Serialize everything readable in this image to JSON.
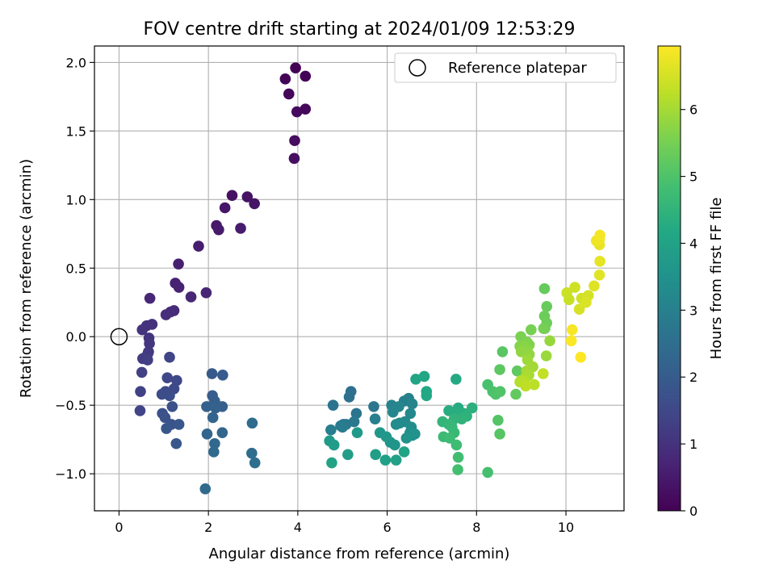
{
  "chart_data": {
    "type": "scatter",
    "title": "FOV centre drift starting at 2024/01/09 12:53:29",
    "xlabel": "Angular distance from reference (arcmin)",
    "ylabel": "Rotation from reference (arcmin)",
    "xlim": [
      -0.55,
      11.3
    ],
    "ylim": [
      -1.27,
      2.12
    ],
    "x_ticks": [
      0,
      2,
      4,
      6,
      8,
      10
    ],
    "y_ticks": [
      -1.0,
      -0.5,
      0.0,
      0.5,
      1.0,
      1.5,
      2.0
    ],
    "x_tick_labels": [
      "0",
      "2",
      "4",
      "6",
      "8",
      "10"
    ],
    "y_tick_labels": [
      "−1.0",
      "−0.5",
      "0.0",
      "0.5",
      "1.0",
      "1.5",
      "2.0"
    ],
    "grid": true,
    "legend": {
      "placement": "top-right",
      "entries": [
        {
          "label": "Reference platepar",
          "marker": "open-circle",
          "color": "#000000"
        }
      ]
    },
    "reference_point": {
      "x": 0.0,
      "y": 0.0
    },
    "colorbar": {
      "label": "Hours from first FF file",
      "range": [
        0,
        6.95
      ],
      "ticks": [
        0,
        1,
        2,
        3,
        4,
        5,
        6
      ],
      "tick_labels": [
        "0",
        "1",
        "2",
        "3",
        "4",
        "5",
        "6"
      ],
      "colormap": "viridis"
    },
    "series": [
      {
        "points": [
          [
            3.95,
            1.96
          ],
          [
            4.17,
            1.9
          ],
          [
            3.72,
            1.88
          ],
          [
            3.8,
            1.77
          ],
          [
            4.17,
            1.66
          ],
          [
            3.98,
            1.64
          ],
          [
            3.93,
            1.43
          ],
          [
            3.92,
            1.3
          ],
          [
            2.53,
            1.03
          ],
          [
            2.87,
            1.02
          ],
          [
            3.03,
            0.97
          ],
          [
            2.37,
            0.94
          ],
          [
            2.18,
            0.81
          ],
          [
            2.23,
            0.78
          ],
          [
            2.72,
            0.79
          ],
          [
            1.78,
            0.66
          ],
          [
            1.33,
            0.53
          ],
          [
            1.26,
            0.39
          ],
          [
            1.34,
            0.36
          ],
          [
            1.95,
            0.32
          ],
          [
            1.61,
            0.29
          ],
          [
            0.69,
            0.28
          ],
          [
            1.23,
            0.19
          ],
          [
            1.15,
            0.18
          ],
          [
            1.05,
            0.16
          ],
          [
            0.74,
            0.09
          ],
          [
            0.62,
            0.08
          ],
          [
            0.52,
            0.05
          ],
          [
            0.67,
            -0.01
          ],
          [
            0.68,
            -0.05
          ],
          [
            0.66,
            -0.11
          ],
          [
            0.65,
            -0.12
          ],
          [
            0.59,
            -0.15
          ],
          [
            0.53,
            -0.16
          ],
          [
            0.64,
            -0.17
          ],
          [
            0.51,
            -0.26
          ],
          [
            0.48,
            -0.4
          ],
          [
            0.47,
            -0.54
          ],
          [
            1.13,
            -0.15
          ],
          [
            1.08,
            -0.3
          ],
          [
            1.29,
            -0.32
          ],
          [
            1.23,
            -0.38
          ],
          [
            1.04,
            -0.4
          ],
          [
            0.96,
            -0.42
          ],
          [
            1.13,
            -0.43
          ],
          [
            0.97,
            -0.56
          ],
          [
            1.19,
            -0.51
          ],
          [
            1.03,
            -0.59
          ],
          [
            1.17,
            -0.64
          ],
          [
            1.06,
            -0.67
          ],
          [
            1.34,
            -0.64
          ],
          [
            1.28,
            -0.78
          ],
          [
            2.08,
            -0.27
          ],
          [
            2.32,
            -0.28
          ],
          [
            2.09,
            -0.43
          ],
          [
            2.14,
            -0.47
          ],
          [
            2.31,
            -0.51
          ],
          [
            1.96,
            -0.51
          ],
          [
            2.16,
            -0.52
          ],
          [
            2.1,
            -0.59
          ],
          [
            1.97,
            -0.71
          ],
          [
            2.31,
            -0.7
          ],
          [
            2.14,
            -0.78
          ],
          [
            2.12,
            -0.84
          ],
          [
            1.93,
            -1.11
          ],
          [
            2.98,
            -0.63
          ],
          [
            2.97,
            -0.85
          ],
          [
            3.04,
            -0.92
          ],
          [
            5.19,
            -0.4
          ],
          [
            5.15,
            -0.44
          ],
          [
            4.79,
            -0.5
          ],
          [
            5.31,
            -0.56
          ],
          [
            5.7,
            -0.51
          ],
          [
            5.26,
            -0.62
          ],
          [
            5.08,
            -0.64
          ],
          [
            5.02,
            -0.64
          ],
          [
            4.96,
            -0.65
          ],
          [
            5.0,
            -0.66
          ],
          [
            4.74,
            -0.68
          ],
          [
            5.73,
            -0.6
          ],
          [
            6.38,
            -0.47
          ],
          [
            6.48,
            -0.45
          ],
          [
            6.1,
            -0.5
          ],
          [
            6.56,
            -0.49
          ],
          [
            6.26,
            -0.51
          ],
          [
            6.13,
            -0.55
          ],
          [
            6.52,
            -0.56
          ],
          [
            6.4,
            -0.62
          ],
          [
            6.28,
            -0.63
          ],
          [
            6.2,
            -0.64
          ],
          [
            6.54,
            -0.66
          ],
          [
            6.51,
            -0.7
          ],
          [
            6.56,
            -0.72
          ],
          [
            6.62,
            -0.71
          ],
          [
            6.43,
            -0.74
          ],
          [
            6.07,
            -0.77
          ],
          [
            6.17,
            -0.79
          ],
          [
            5.84,
            -0.7
          ],
          [
            5.98,
            -0.73
          ],
          [
            5.33,
            -0.7
          ],
          [
            4.71,
            -0.76
          ],
          [
            4.81,
            -0.79
          ],
          [
            5.12,
            -0.86
          ],
          [
            5.74,
            -0.86
          ],
          [
            5.96,
            -0.9
          ],
          [
            6.2,
            -0.9
          ],
          [
            6.38,
            -0.84
          ],
          [
            4.76,
            -0.92
          ],
          [
            6.64,
            -0.31
          ],
          [
            6.83,
            -0.29
          ],
          [
            6.88,
            -0.4
          ],
          [
            6.88,
            -0.43
          ],
          [
            7.54,
            -0.31
          ],
          [
            7.59,
            -0.52
          ],
          [
            7.38,
            -0.54
          ],
          [
            7.56,
            -0.55
          ],
          [
            7.72,
            -0.56
          ],
          [
            7.9,
            -0.52
          ],
          [
            7.78,
            -0.58
          ],
          [
            7.67,
            -0.6
          ],
          [
            7.5,
            -0.6
          ],
          [
            7.24,
            -0.62
          ],
          [
            7.38,
            -0.64
          ],
          [
            7.45,
            -0.66
          ],
          [
            7.5,
            -0.7
          ],
          [
            7.26,
            -0.73
          ],
          [
            7.4,
            -0.74
          ],
          [
            7.55,
            -0.79
          ],
          [
            7.59,
            -0.88
          ],
          [
            7.58,
            -0.97
          ],
          [
            8.25,
            -0.99
          ],
          [
            8.25,
            -0.35
          ],
          [
            8.36,
            -0.4
          ],
          [
            8.43,
            -0.42
          ],
          [
            8.53,
            -0.4
          ],
          [
            8.48,
            -0.61
          ],
          [
            8.52,
            -0.71
          ],
          [
            8.58,
            -0.11
          ],
          [
            8.52,
            -0.24
          ],
          [
            8.91,
            -0.25
          ],
          [
            8.88,
            -0.42
          ],
          [
            9.52,
            0.35
          ],
          [
            9.57,
            0.22
          ],
          [
            9.52,
            0.15
          ],
          [
            9.57,
            0.1
          ],
          [
            9.53,
            0.06
          ],
          [
            9.5,
            0.06
          ],
          [
            9.22,
            0.05
          ],
          [
            8.99,
            0.0
          ],
          [
            9.13,
            -0.04
          ],
          [
            9.18,
            -0.06
          ],
          [
            8.97,
            -0.07
          ],
          [
            9.06,
            -0.07
          ],
          [
            9.13,
            -0.1
          ],
          [
            9.0,
            -0.11
          ],
          [
            9.18,
            -0.13
          ],
          [
            9.64,
            -0.03
          ],
          [
            9.56,
            -0.14
          ],
          [
            9.14,
            -0.17
          ],
          [
            9.26,
            -0.22
          ],
          [
            9.12,
            -0.25
          ],
          [
            9.17,
            -0.28
          ],
          [
            9.09,
            -0.3
          ],
          [
            9.0,
            -0.32
          ],
          [
            8.97,
            -0.33
          ],
          [
            9.06,
            -0.33
          ],
          [
            9.29,
            -0.35
          ],
          [
            9.1,
            -0.36
          ],
          [
            9.49,
            -0.27
          ],
          [
            10.07,
            0.27
          ],
          [
            10.02,
            0.32
          ],
          [
            10.2,
            0.36
          ],
          [
            10.35,
            0.28
          ],
          [
            10.5,
            0.3
          ],
          [
            10.3,
            0.2
          ],
          [
            10.45,
            0.25
          ],
          [
            10.63,
            0.37
          ],
          [
            10.75,
            0.45
          ],
          [
            10.76,
            0.55
          ],
          [
            10.75,
            0.67
          ],
          [
            10.68,
            0.7
          ],
          [
            10.75,
            0.71
          ],
          [
            10.76,
            0.74
          ],
          [
            10.14,
            0.05
          ],
          [
            10.12,
            -0.03
          ],
          [
            10.33,
            -0.15
          ]
        ]
      }
    ]
  }
}
